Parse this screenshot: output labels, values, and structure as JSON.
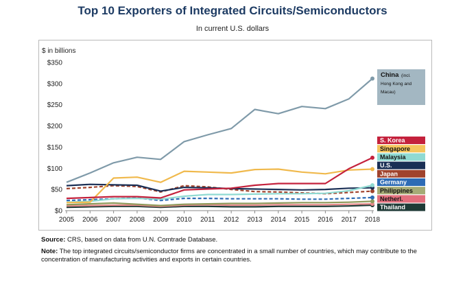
{
  "chart_data": {
    "type": "line",
    "title": "Top 10 Exporters of Integrated Circuits/Semiconductors",
    "subtitle": "In current U.S. dollars",
    "ylabel": "$ in billions",
    "xlabel": "",
    "ylim": [
      0,
      350
    ],
    "yticks": [
      0,
      50,
      100,
      150,
      200,
      250,
      300,
      350
    ],
    "ytick_labels": [
      "$0",
      "$50",
      "$100",
      "$150",
      "$200",
      "$250",
      "$300",
      "$350"
    ],
    "x": [
      2005,
      2006,
      2007,
      2008,
      2009,
      2010,
      2011,
      2012,
      2013,
      2014,
      2015,
      2016,
      2017,
      2018
    ],
    "series": [
      {
        "name": "China",
        "label_main": "China",
        "label_note": "(incl. Hong Kong and Macau)",
        "color": "#7f9aa9",
        "label_bg": "#a3b7c2",
        "label_fg": "#111111",
        "dashed": false,
        "values": [
          67,
          89,
          113,
          126,
          121,
          163,
          179,
          194,
          239,
          229,
          246,
          241,
          264,
          312
        ]
      },
      {
        "name": "S. Korea",
        "label_main": "S. Korea",
        "label_note": "",
        "color": "#c4213c",
        "label_bg": "#c4213c",
        "label_fg": "#ffffff",
        "dashed": false,
        "values": [
          29,
          31,
          33,
          33,
          30,
          49,
          51,
          53,
          60,
          64,
          64,
          64,
          99,
          125
        ]
      },
      {
        "name": "Singapore",
        "label_main": "Singapore",
        "label_note": "",
        "color": "#f0b94c",
        "label_bg": "#f5c55e",
        "label_fg": "#111111",
        "dashed": false,
        "values": [
          19,
          20,
          77,
          79,
          67,
          93,
          91,
          89,
          97,
          98,
          91,
          87,
          96,
          98
        ]
      },
      {
        "name": "Malaysia",
        "label_main": "Malaysia",
        "label_note": "",
        "color": "#8fdad2",
        "label_bg": "#8fdad2",
        "label_fg": "#111111",
        "dashed": false,
        "values": [
          20,
          22,
          28,
          29,
          27,
          34,
          38,
          38,
          39,
          40,
          40,
          41,
          47,
          60
        ]
      },
      {
        "name": "U.S.",
        "label_main": "U.S.",
        "label_note": "",
        "color": "#1a2f55",
        "label_bg": "#1a2f55",
        "label_fg": "#ffffff",
        "dashed": false,
        "values": [
          59,
          62,
          61,
          60,
          46,
          55,
          54,
          52,
          51,
          50,
          49,
          50,
          53,
          54
        ]
      },
      {
        "name": "Japan",
        "label_main": "Japan",
        "label_note": "",
        "color": "#a0432d",
        "label_bg": "#a0432d",
        "label_fg": "#ffffff",
        "dashed": true,
        "values": [
          52,
          55,
          59,
          57,
          44,
          59,
          56,
          50,
          45,
          44,
          42,
          40,
          43,
          46
        ]
      },
      {
        "name": "Germany",
        "label_main": "Germany",
        "label_note": "",
        "color": "#2d6bb5",
        "label_bg": "#2d6bb5",
        "label_fg": "#ffffff",
        "dashed": true,
        "values": [
          24,
          26,
          28,
          30,
          24,
          29,
          29,
          28,
          28,
          28,
          27,
          27,
          29,
          31
        ]
      },
      {
        "name": "Philippines",
        "label_main": "Philippines",
        "label_note": "",
        "color": "#8f9a5a",
        "label_bg": "#a5ab76",
        "label_fg": "#111111",
        "dashed": false,
        "values": [
          14,
          16,
          18,
          15,
          12,
          15,
          16,
          17,
          17,
          18,
          19,
          19,
          20,
          22
        ]
      },
      {
        "name": "Netherl.",
        "label_main": "Netherl.",
        "label_note": "",
        "color": "#e88a8a",
        "label_bg": "#e36f7d",
        "label_fg": "#111111",
        "dashed": false,
        "values": [
          11,
          12,
          13,
          13,
          10,
          13,
          14,
          13,
          13,
          14,
          14,
          14,
          15,
          16
        ]
      },
      {
        "name": "Thailand",
        "label_main": "Thailand",
        "label_note": "",
        "color": "#1e3a36",
        "label_bg": "#1e3a36",
        "label_fg": "#ffffff",
        "dashed": false,
        "values": [
          8,
          9,
          10,
          10,
          8,
          10,
          10,
          9,
          9,
          10,
          10,
          10,
          11,
          13
        ]
      }
    ],
    "legend_placement": "right, labels at line ends",
    "grid": false
  },
  "notes": {
    "source_label": "Source:",
    "source_text": "CRS, based on data from U.N. Comtrade Database.",
    "note_label": "Note:",
    "note_text": "The top integrated circuits/semiconductor firms are concentrated in a small number of countries, which may contribute to the concentration of manufacturing activities and exports in certain countries."
  }
}
